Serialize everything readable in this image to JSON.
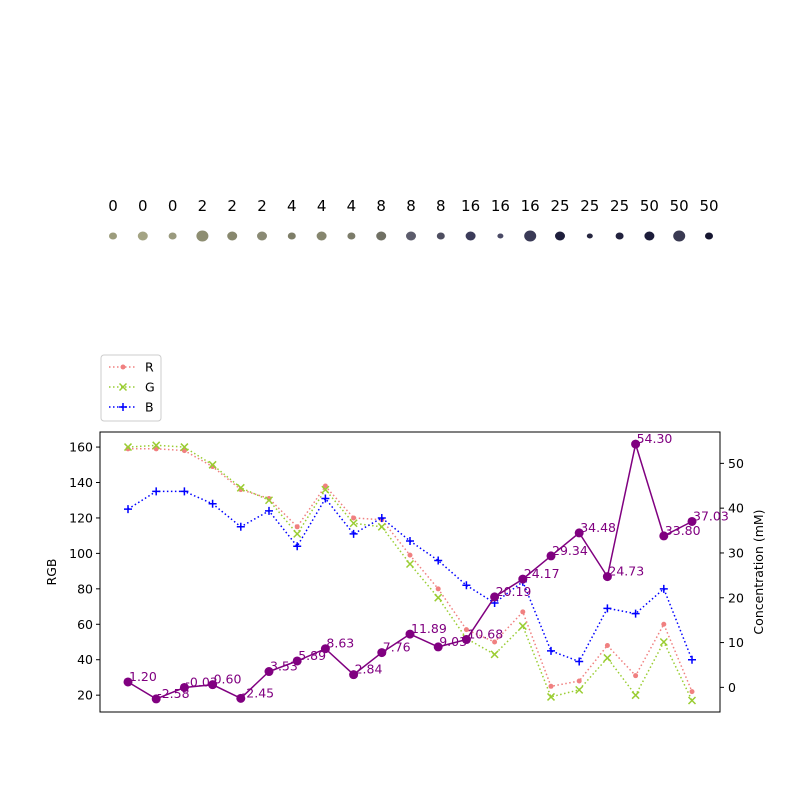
{
  "chart_data": [
    {
      "type": "scatter",
      "description_role": "sample-swatch-strip",
      "labels": [
        "0",
        "0",
        "0",
        "2",
        "2",
        "2",
        "4",
        "4",
        "4",
        "8",
        "8",
        "8",
        "16",
        "16",
        "16",
        "25",
        "25",
        "25",
        "50",
        "50",
        "50"
      ],
      "swatch_colors": [
        "#9c9c7c",
        "#a4a484",
        "#9a9a7e",
        "#8e8e72",
        "#88886e",
        "#8a8a74",
        "#7e7e68",
        "#86866e",
        "#7c7c6a",
        "#707064",
        "#5c5c6c",
        "#4e4e60",
        "#3c3c5a",
        "#4a4a66",
        "#3a3a56",
        "#1e1e3c",
        "#262640",
        "#22223e",
        "#1c1c3a",
        "#3a3a52",
        "#161630"
      ]
    },
    {
      "type": "line",
      "x_count": 21,
      "series": [
        {
          "name": "R",
          "axis": "left",
          "color": "#f08080",
          "style": "dotted",
          "marker": "dot",
          "values": [
            159,
            159,
            158,
            149,
            136,
            131,
            115,
            138,
            120,
            119,
            99,
            80,
            57,
            50,
            67,
            25,
            28,
            48,
            31,
            60,
            22
          ]
        },
        {
          "name": "G",
          "axis": "left",
          "color": "#9acd32",
          "style": "dotted",
          "marker": "x",
          "values": [
            160,
            161,
            160,
            150,
            137,
            130,
            111,
            136,
            117,
            115,
            94,
            75,
            52,
            43,
            59,
            19,
            23,
            41,
            20,
            50,
            17
          ]
        },
        {
          "name": "B",
          "axis": "left",
          "color": "#0000ff",
          "style": "dotted",
          "marker": "plus",
          "values": [
            125,
            135,
            135,
            128,
            115,
            124,
            104,
            131,
            111,
            120,
            107,
            96,
            82,
            72,
            84,
            45,
            39,
            69,
            66,
            80,
            40
          ]
        },
        {
          "axis": "right",
          "color": "#800080",
          "style": "solid",
          "marker": "circle",
          "values": [
            1.2,
            -2.58,
            -0.03,
            0.6,
            -2.45,
            3.53,
            5.89,
            8.63,
            2.84,
            7.76,
            11.89,
            9.03,
            10.68,
            20.19,
            24.17,
            29.34,
            34.48,
            24.73,
            54.3,
            33.8,
            37.03
          ],
          "value_labels": [
            "1.20",
            "-2.58",
            "-0.03",
            "0.60",
            "-2.45",
            "3.53",
            "5.89",
            "8.63",
            "2.84",
            "7.76",
            "11.89",
            "9.03",
            "10.68",
            "20.19",
            "24.17",
            "29.34",
            "34.48",
            "24.73",
            "54.30",
            "33.80",
            "37.03"
          ]
        }
      ],
      "ylabel": "RGB",
      "ylabel_right": "Concentration (mM)",
      "ylim": [
        10.5,
        168.5
      ],
      "ylim_right": [
        -5.5,
        57
      ],
      "yticks": [
        "20",
        "40",
        "60",
        "80",
        "100",
        "120",
        "140",
        "160"
      ],
      "yticks_right": [
        "0",
        "10",
        "20",
        "30",
        "40",
        "50"
      ],
      "legend": [
        "R",
        "G",
        "B"
      ],
      "legend_position": "above-top-left",
      "grid": false
    }
  ]
}
